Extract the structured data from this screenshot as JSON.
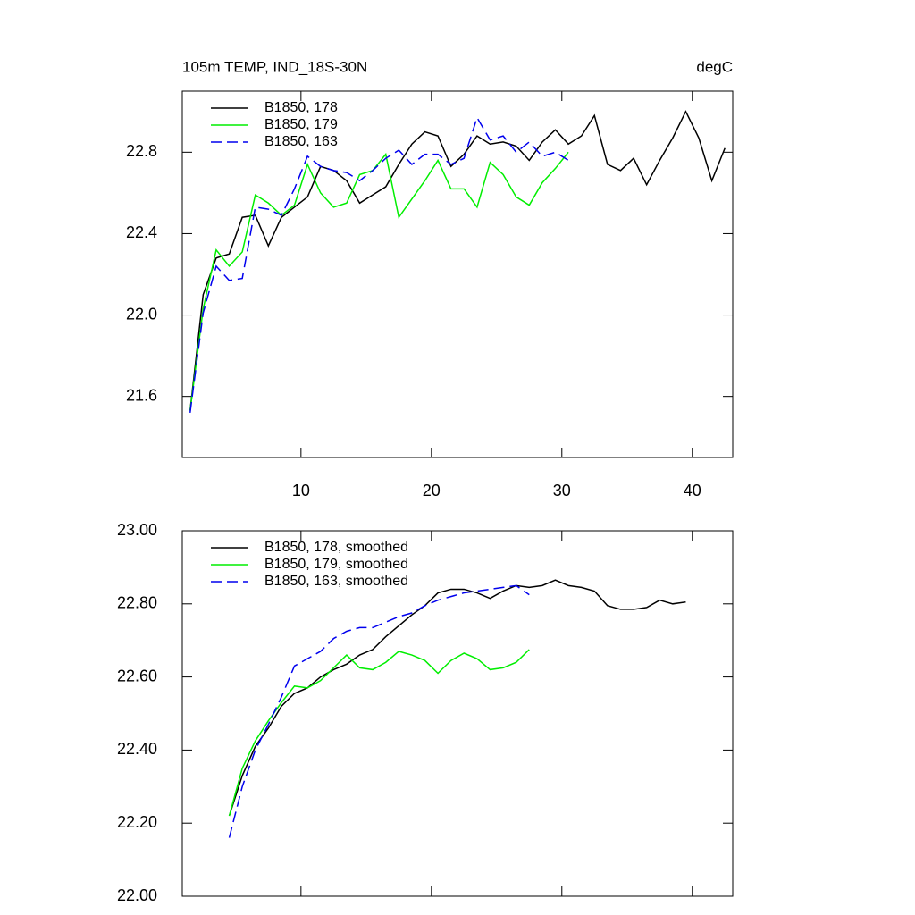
{
  "chart_data": [
    {
      "type": "line",
      "title": "105m TEMP, IND_18S-30N",
      "subtitle": "degC",
      "xlim": [
        0.9,
        43.1
      ],
      "xticks": [
        10,
        20,
        30,
        40
      ],
      "xtick_labels": true,
      "ylim": [
        21.3,
        23.1
      ],
      "yticks": [
        21.6,
        {
          "value": 22,
          "label": "22.0"
        },
        22.4,
        22.8
      ],
      "series": [
        {
          "name": "B1850, 178",
          "color": "#000000",
          "line_style": "solid",
          "x": [
            1.5,
            2.5,
            3.5,
            4.5,
            5.5,
            6.5,
            7.5,
            8.5,
            9.5,
            10.5,
            11.5,
            12.5,
            13.5,
            14.5,
            15.5,
            16.5,
            17.5,
            18.5,
            19.5,
            20.5,
            21.5,
            22.5,
            23.5,
            24.5,
            25.5,
            26.5,
            27.5,
            28.5,
            29.5,
            30.5,
            31.5,
            32.5,
            33.5,
            34.5,
            35.5,
            36.5,
            37.5,
            38.5,
            39.5,
            40.5,
            41.5,
            42.5
          ],
          "values": [
            21.53,
            22.1,
            22.28,
            22.3,
            22.48,
            22.49,
            22.34,
            22.48,
            22.53,
            22.58,
            22.73,
            22.71,
            22.66,
            22.55,
            22.59,
            22.63,
            22.74,
            22.84,
            22.9,
            22.88,
            22.73,
            22.79,
            22.88,
            22.84,
            22.85,
            22.83,
            22.76,
            22.85,
            22.91,
            22.84,
            22.88,
            22.98,
            22.74,
            22.71,
            22.77,
            22.64,
            22.76,
            22.87,
            23.0,
            22.87,
            22.66,
            22.82
          ]
        },
        {
          "name": "B1850, 179",
          "color": "#00ee00",
          "line_style": "solid",
          "x": [
            1.5,
            2.5,
            3.5,
            4.5,
            5.5,
            6.5,
            7.5,
            8.5,
            9.5,
            10.5,
            11.5,
            12.5,
            13.5,
            14.5,
            15.5,
            16.5,
            17.5,
            18.5,
            19.5,
            20.5,
            21.5,
            22.5,
            23.5,
            24.5,
            25.5,
            26.5,
            27.5,
            28.5,
            29.5,
            30.5
          ],
          "values": [
            21.53,
            22.03,
            22.32,
            22.24,
            22.31,
            22.59,
            22.55,
            22.49,
            22.54,
            22.74,
            22.6,
            22.53,
            22.55,
            22.69,
            22.71,
            22.79,
            22.48,
            22.57,
            22.66,
            22.76,
            22.62,
            22.62,
            22.53,
            22.75,
            22.69,
            22.58,
            22.54,
            22.65,
            22.72,
            22.8
          ]
        },
        {
          "name": "B1850, 163",
          "color": "#0000ee",
          "line_style": "dashed",
          "x": [
            1.5,
            2.5,
            3.5,
            4.5,
            5.5,
            6.5,
            7.5,
            8.5,
            9.5,
            10.5,
            11.5,
            12.5,
            13.5,
            14.5,
            15.5,
            16.5,
            17.5,
            18.5,
            19.5,
            20.5,
            21.5,
            22.5,
            23.5,
            24.5,
            25.5,
            26.5,
            27.5,
            28.5,
            29.5,
            30.5
          ],
          "values": [
            21.52,
            22.01,
            22.24,
            22.17,
            22.18,
            22.53,
            22.52,
            22.49,
            22.62,
            22.78,
            22.73,
            22.71,
            22.7,
            22.66,
            22.71,
            22.77,
            22.81,
            22.74,
            22.79,
            22.79,
            22.74,
            22.77,
            22.97,
            22.86,
            22.88,
            22.8,
            22.85,
            22.78,
            22.8,
            22.76
          ]
        }
      ]
    },
    {
      "type": "line",
      "xlim": [
        0.9,
        43.1
      ],
      "xticks": [
        10,
        20,
        30,
        40
      ],
      "xtick_labels": false,
      "ylim": [
        22.0,
        23.0
      ],
      "yticks": [
        {
          "value": 22,
          "label": "22.00"
        },
        {
          "value": 22.2,
          "label": "22.20"
        },
        {
          "value": 22.4,
          "label": "22.40"
        },
        {
          "value": 22.6,
          "label": "22.60"
        },
        {
          "value": 22.8,
          "label": "22.80"
        },
        {
          "value": 23,
          "label": "23.00"
        }
      ],
      "series": [
        {
          "name": "B1850, 178, smoothed",
          "color": "#000000",
          "line_style": "solid",
          "x": [
            4.5,
            5.5,
            6.5,
            7.5,
            8.5,
            9.5,
            10.5,
            11.5,
            12.5,
            13.5,
            14.5,
            15.5,
            16.5,
            17.5,
            18.5,
            19.5,
            20.5,
            21.5,
            22.5,
            23.5,
            24.5,
            25.5,
            26.5,
            27.5,
            28.5,
            29.5,
            30.5,
            31.5,
            32.5,
            33.5,
            34.5,
            35.5,
            36.5,
            37.5,
            38.5,
            39.5
          ],
          "values": [
            22.22,
            22.33,
            22.41,
            22.46,
            22.52,
            22.555,
            22.57,
            22.6,
            22.62,
            22.635,
            22.66,
            22.675,
            22.71,
            22.74,
            22.77,
            22.795,
            22.83,
            22.84,
            22.84,
            22.83,
            22.815,
            22.835,
            22.85,
            22.845,
            22.85,
            22.865,
            22.85,
            22.845,
            22.835,
            22.795,
            22.785,
            22.785,
            22.79,
            22.81,
            22.8,
            22.805
          ]
        },
        {
          "name": "B1850, 179, smoothed",
          "color": "#00ee00",
          "line_style": "solid",
          "x": [
            4.5,
            5.5,
            6.5,
            7.5,
            8.5,
            9.5,
            10.5,
            11.5,
            12.5,
            13.5,
            14.5,
            15.5,
            16.5,
            17.5,
            18.5,
            19.5,
            20.5,
            21.5,
            22.5,
            23.5,
            24.5,
            25.5,
            26.5,
            27.5
          ],
          "values": [
            22.22,
            22.35,
            22.425,
            22.48,
            22.53,
            22.575,
            22.57,
            22.59,
            22.625,
            22.66,
            22.625,
            22.62,
            22.64,
            22.67,
            22.66,
            22.645,
            22.61,
            22.645,
            22.665,
            22.65,
            22.62,
            22.625,
            22.64,
            22.675
          ]
        },
        {
          "name": "B1850, 163, smoothed",
          "color": "#0000ee",
          "line_style": "dashed",
          "x": [
            4.5,
            5.5,
            6.5,
            7.5,
            8.5,
            9.5,
            10.5,
            11.5,
            12.5,
            13.5,
            14.5,
            15.5,
            16.5,
            17.5,
            18.5,
            19.5,
            20.5,
            21.5,
            22.5,
            23.5,
            24.5,
            25.5,
            26.5,
            27.5
          ],
          "values": [
            22.16,
            22.3,
            22.4,
            22.47,
            22.545,
            22.63,
            22.65,
            22.67,
            22.705,
            22.725,
            22.735,
            22.735,
            22.75,
            22.765,
            22.775,
            22.795,
            22.81,
            22.82,
            22.83,
            22.835,
            22.84,
            22.845,
            22.85,
            22.825
          ]
        }
      ]
    }
  ]
}
